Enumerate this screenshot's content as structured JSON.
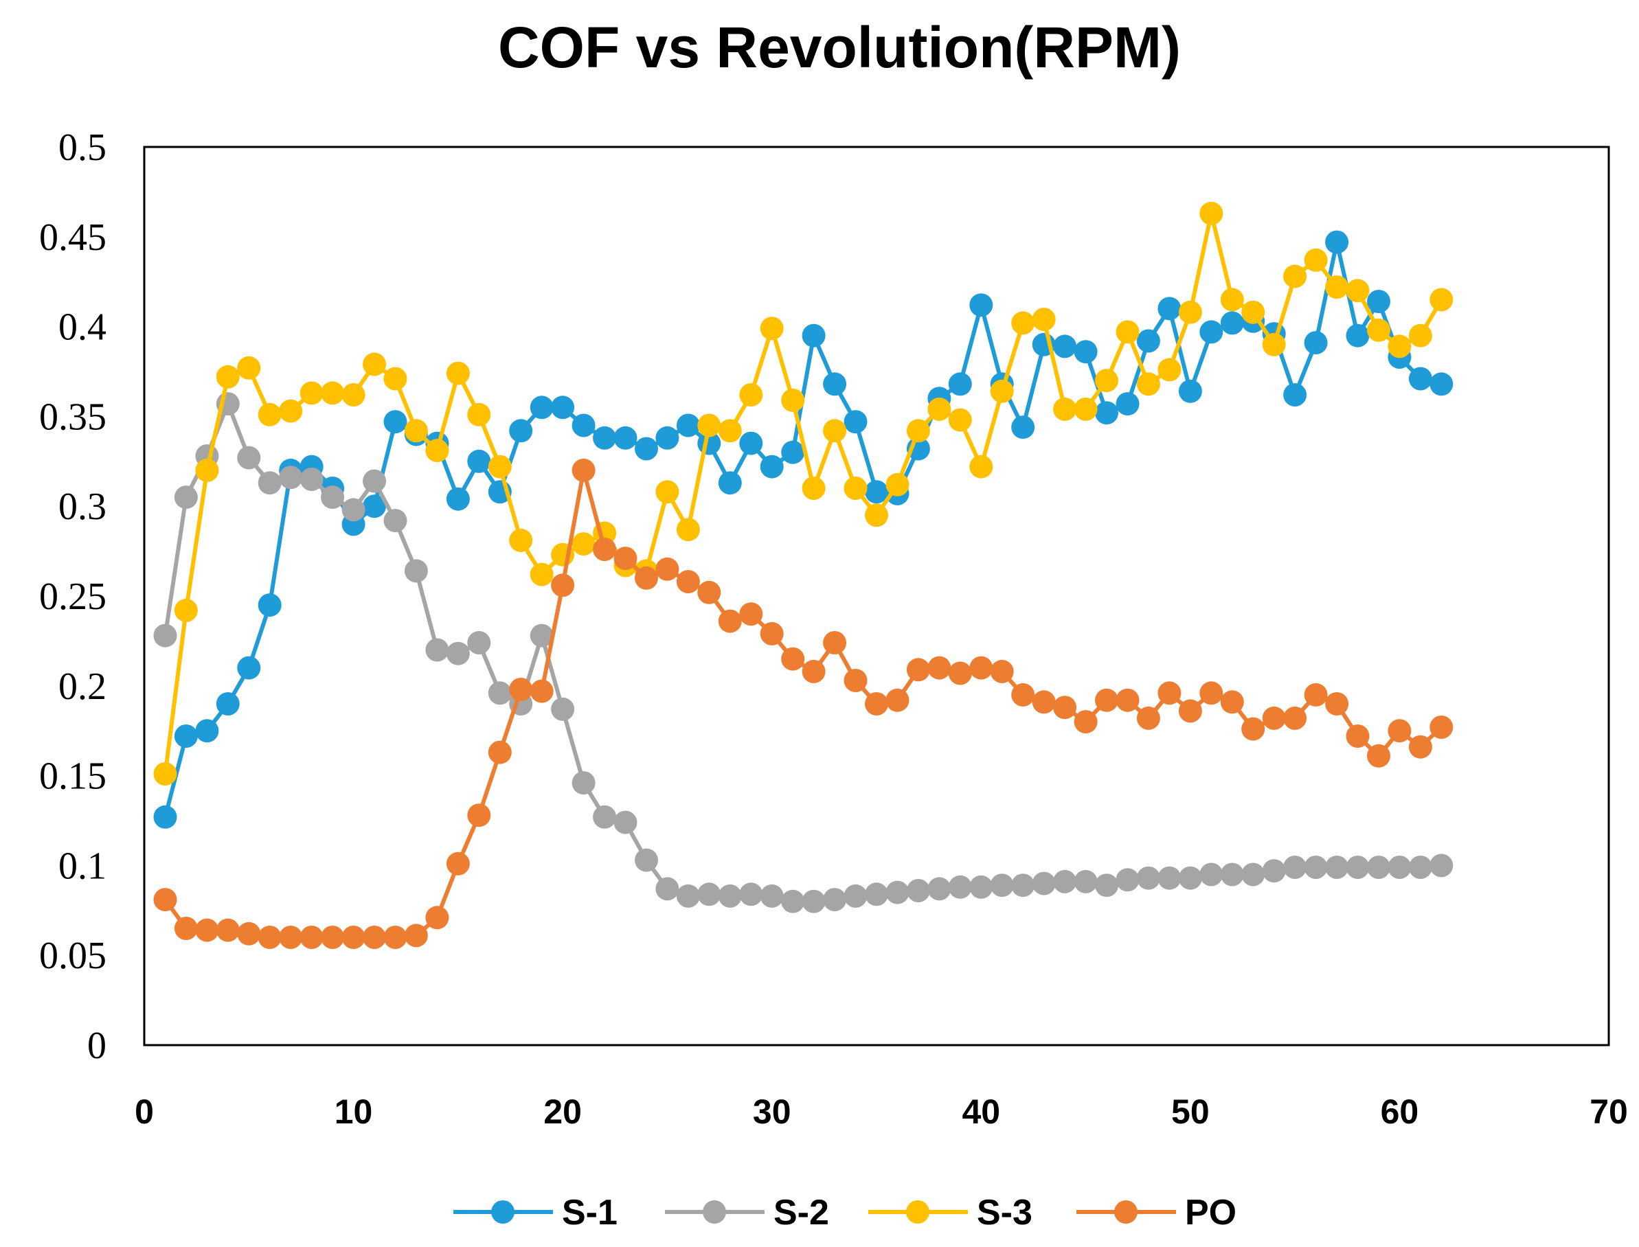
{
  "chart_data": {
    "type": "line",
    "title": "COF vs Revolution(RPM)",
    "xlabel": "",
    "ylabel": "",
    "xlim": [
      0,
      70
    ],
    "ylim": [
      0,
      0.5
    ],
    "x_ticks": [
      0,
      10,
      20,
      30,
      40,
      50,
      60,
      70
    ],
    "x_tick_labels": [
      "0",
      "10",
      "20",
      "30",
      "40",
      "50",
      "60",
      "70"
    ],
    "y_ticks": [
      0,
      0.05,
      0.1,
      0.15,
      0.2,
      0.25,
      0.3,
      0.35,
      0.4,
      0.45,
      0.5
    ],
    "y_tick_labels": [
      "0",
      "0.05",
      "0.1",
      "0.15",
      "0.2",
      "0.25",
      "0.3",
      "0.35",
      "0.4",
      "0.45",
      "0.5"
    ],
    "grid": false,
    "legend_position": "bottom",
    "series": [
      {
        "name": "S-1",
        "color": "#1F9BD7",
        "values": [
          0.127,
          0.172,
          0.175,
          0.19,
          0.21,
          0.245,
          0.32,
          0.322,
          0.31,
          0.29,
          0.3,
          0.347,
          0.34,
          0.335,
          0.304,
          0.325,
          0.308,
          0.342,
          0.355,
          0.355,
          0.345,
          0.338,
          0.338,
          0.332,
          0.338,
          0.345,
          0.335,
          0.313,
          0.335,
          0.322,
          0.33,
          0.395,
          0.368,
          0.347,
          0.308,
          0.307,
          0.332,
          0.36,
          0.368,
          0.412,
          0.368,
          0.344,
          0.39,
          0.389,
          0.386,
          0.352,
          0.357,
          0.392,
          0.41,
          0.364,
          0.397,
          0.402,
          0.403,
          0.396,
          0.362,
          0.391,
          0.447,
          0.395,
          0.414,
          0.383,
          0.371,
          0.368
        ]
      },
      {
        "name": "S-2",
        "color": "#A5A5A5",
        "values": [
          0.228,
          0.305,
          0.328,
          0.357,
          0.327,
          0.313,
          0.316,
          0.315,
          0.305,
          0.298,
          0.314,
          0.292,
          0.264,
          0.22,
          0.218,
          0.224,
          0.196,
          0.19,
          0.228,
          0.187,
          0.146,
          0.127,
          0.124,
          0.103,
          0.087,
          0.083,
          0.084,
          0.083,
          0.084,
          0.083,
          0.08,
          0.08,
          0.081,
          0.083,
          0.084,
          0.085,
          0.086,
          0.087,
          0.088,
          0.088,
          0.089,
          0.089,
          0.09,
          0.091,
          0.091,
          0.089,
          0.092,
          0.093,
          0.093,
          0.093,
          0.095,
          0.095,
          0.095,
          0.097,
          0.099,
          0.099,
          0.099,
          0.099,
          0.099,
          0.099,
          0.099,
          0.1
        ]
      },
      {
        "name": "S-3",
        "color": "#FFC000",
        "values": [
          0.151,
          0.242,
          0.32,
          0.372,
          0.377,
          0.351,
          0.353,
          0.363,
          0.363,
          0.362,
          0.379,
          0.371,
          0.342,
          0.331,
          0.374,
          0.351,
          0.322,
          0.281,
          0.262,
          0.273,
          0.279,
          0.285,
          0.267,
          0.264,
          0.308,
          0.287,
          0.345,
          0.342,
          0.362,
          0.399,
          0.359,
          0.31,
          0.342,
          0.31,
          0.295,
          0.312,
          0.342,
          0.354,
          0.348,
          0.322,
          0.364,
          0.402,
          0.404,
          0.354,
          0.354,
          0.37,
          0.397,
          0.368,
          0.376,
          0.408,
          0.463,
          0.415,
          0.408,
          0.39,
          0.428,
          0.437,
          0.422,
          0.42,
          0.398,
          0.389,
          0.395,
          0.415
        ]
      },
      {
        "name": "PO",
        "color": "#ED7D31",
        "values": [
          0.081,
          0.065,
          0.064,
          0.064,
          0.062,
          0.06,
          0.06,
          0.06,
          0.06,
          0.06,
          0.06,
          0.06,
          0.061,
          0.071,
          0.101,
          0.128,
          0.163,
          0.198,
          0.197,
          0.256,
          0.32,
          0.276,
          0.271,
          0.26,
          0.265,
          0.258,
          0.252,
          0.236,
          0.24,
          0.229,
          0.215,
          0.208,
          0.224,
          0.203,
          0.19,
          0.192,
          0.209,
          0.21,
          0.207,
          0.21,
          0.208,
          0.195,
          0.191,
          0.188,
          0.18,
          0.192,
          0.192,
          0.182,
          0.196,
          0.186,
          0.196,
          0.191,
          0.176,
          0.182,
          0.182,
          0.195,
          0.19,
          0.172,
          0.161,
          0.175,
          0.166,
          0.177
        ]
      }
    ]
  }
}
